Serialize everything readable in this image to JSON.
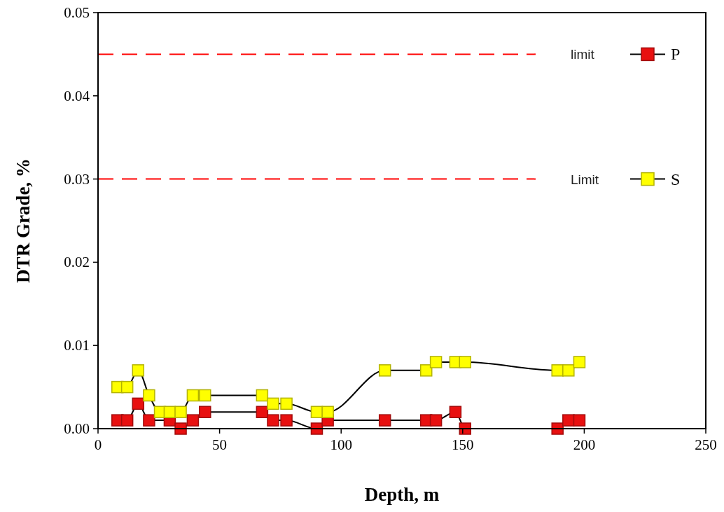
{
  "chart_data": {
    "type": "line",
    "xlabel": "Depth, m",
    "ylabel": "DTR Grade, %",
    "xlim": [
      0,
      250
    ],
    "xticks": [
      0,
      50,
      100,
      150,
      200,
      250
    ],
    "ylim": [
      0,
      0.05
    ],
    "yticks": [
      {
        "value": 0,
        "label": "0.00"
      },
      {
        "value": 0.01,
        "label": "0.01"
      },
      {
        "value": 0.02,
        "label": "0.02"
      },
      {
        "value": 0.03,
        "label": "0.03"
      },
      {
        "value": 0.04,
        "label": "0.04"
      },
      {
        "value": 0.05,
        "label": "0.05"
      }
    ],
    "grid": false,
    "legend": "right",
    "marker": "square",
    "line_style": "solid",
    "series": [
      {
        "name": "P",
        "color": "#e81010",
        "x": [
          8,
          12,
          16.5,
          21,
          29.5,
          34,
          39,
          44,
          67.5,
          72,
          77.5,
          90,
          94.5,
          118,
          135,
          139,
          147,
          151,
          189,
          193.5,
          198
        ],
        "values": [
          0.001,
          0.001,
          0.003,
          0.001,
          0.001,
          0,
          0.001,
          0.002,
          0.002,
          0.001,
          0.001,
          0,
          0.001,
          0.001,
          0.001,
          0.001,
          0.002,
          0,
          0,
          0.001,
          0.001
        ]
      },
      {
        "name": "S",
        "color": "#ffff00",
        "x": [
          8,
          12,
          16.5,
          21,
          25.5,
          29.5,
          34,
          39,
          44,
          67.5,
          72,
          77.5,
          90,
          94.5,
          118,
          135,
          139,
          147,
          151,
          189,
          193.5,
          198
        ],
        "values": [
          0.005,
          0.005,
          0.007,
          0.004,
          0.002,
          0.002,
          0.002,
          0.004,
          0.004,
          0.004,
          0.003,
          0.003,
          0.002,
          0.002,
          0.007,
          0.007,
          0.008,
          0.008,
          0.008,
          0.007,
          0.007,
          0.008
        ]
      }
    ],
    "ref_lines": [
      {
        "axis": "y",
        "value": 0.045,
        "label": "limit",
        "color": "#ff0000",
        "line_style": "dashed"
      },
      {
        "axis": "y",
        "value": 0.03,
        "label": "Limit",
        "color": "#ff0000",
        "line_style": "dashed"
      }
    ]
  }
}
